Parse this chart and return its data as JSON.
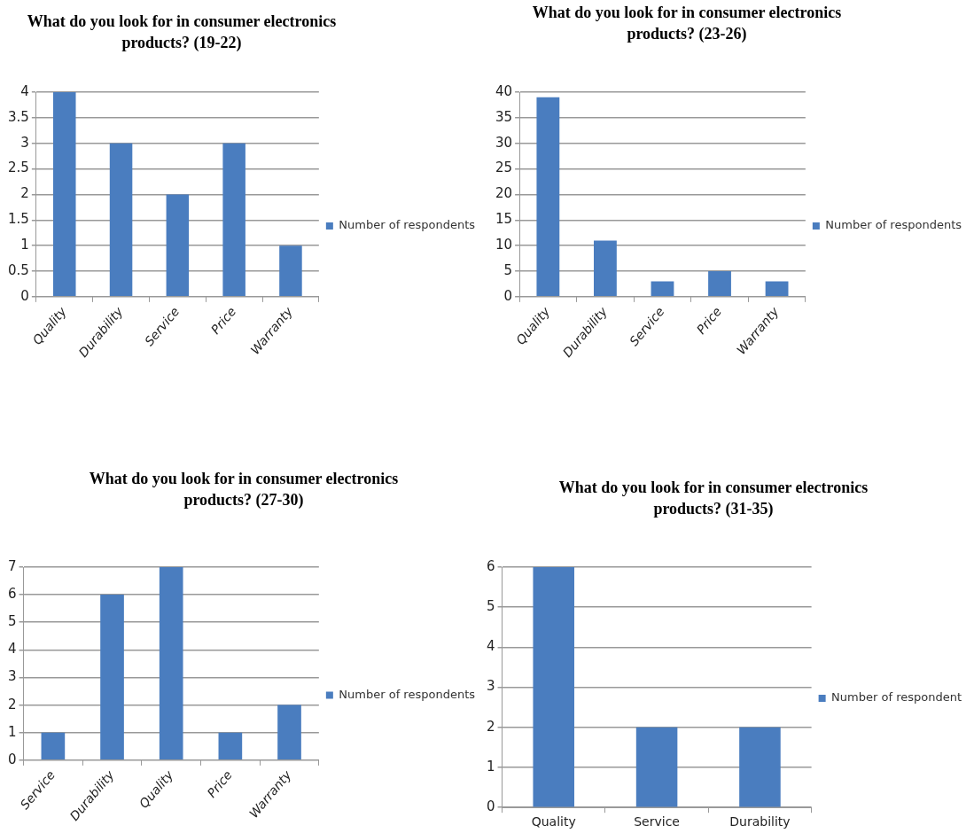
{
  "chart_data": [
    {
      "type": "bar",
      "title": "What do you look for in consumer electronics products? (19-22)",
      "categories": [
        "Quality",
        "Durability",
        "Service",
        "Price",
        "Warranty"
      ],
      "series": [
        {
          "name": "Number of respondents",
          "color": "#4a7dbf",
          "values": [
            4,
            3,
            2,
            3,
            1
          ]
        }
      ],
      "ylim": [
        0,
        4
      ],
      "yticks": [
        0,
        0.5,
        1,
        1.5,
        2,
        2.5,
        3,
        3.5,
        4
      ],
      "grid": "y",
      "legend": "right"
    },
    {
      "type": "bar",
      "title": "What do you look for in consumer electronics products? (23-26)",
      "categories": [
        "Quality",
        "Durability",
        "Service",
        "Price",
        "Warranty"
      ],
      "series": [
        {
          "name": "Number of respondents",
          "color": "#4a7dbf",
          "values": [
            39,
            11,
            3,
            5,
            3
          ]
        }
      ],
      "ylim": [
        0,
        40
      ],
      "yticks": [
        0,
        5,
        10,
        15,
        20,
        25,
        30,
        35,
        40
      ],
      "grid": "y",
      "legend": "right"
    },
    {
      "type": "bar",
      "title": "What do you look for in consumer electronics products? (27-30)",
      "categories": [
        "Service",
        "Durability",
        "Quality",
        "Price",
        "Warranty"
      ],
      "series": [
        {
          "name": "Number of respondents",
          "color": "#4a7dbf",
          "values": [
            1,
            6,
            7,
            1,
            2
          ]
        }
      ],
      "ylim": [
        0,
        7
      ],
      "yticks": [
        0,
        1,
        2,
        3,
        4,
        5,
        6,
        7
      ],
      "grid": "y",
      "legend": "right"
    },
    {
      "type": "bar",
      "title": "What do you look for in consumer electronics products? (31-35)",
      "categories": [
        "Quality",
        "Service",
        "Durability"
      ],
      "series": [
        {
          "name": "Number of respondent",
          "color": "#4a7dbf",
          "values": [
            6,
            2,
            2
          ]
        }
      ],
      "ylim": [
        0,
        6
      ],
      "yticks": [
        0,
        1,
        2,
        3,
        4,
        5,
        6
      ],
      "grid": "y",
      "legend": "right"
    }
  ]
}
